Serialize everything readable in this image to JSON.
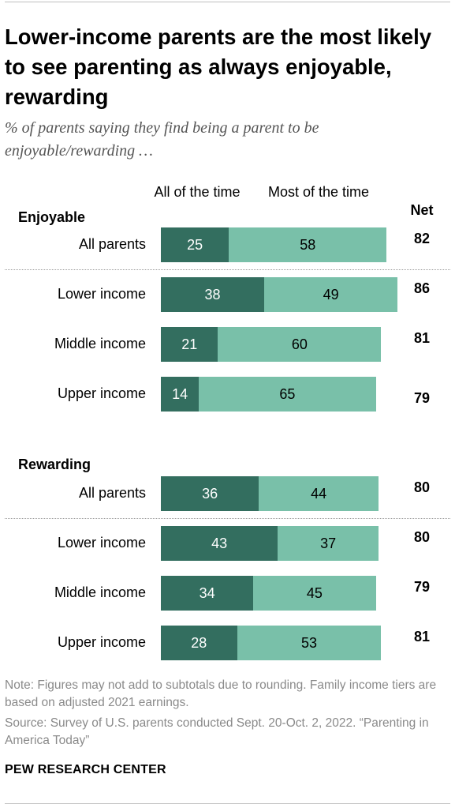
{
  "title": "Lower-income parents are the most likely to see parenting as always enjoyable, rewarding",
  "subtitle": "% of parents saying they find being a parent to be enjoyable/rewarding …",
  "columns": {
    "all": "All of the time",
    "most": "Most of the time",
    "net": "Net"
  },
  "colors": {
    "all": "#336e5f",
    "most": "#79c0a9"
  },
  "chart_data": {
    "type": "bar",
    "stacked": true,
    "orientation": "horizontal",
    "series": [
      {
        "name": "All of the time"
      },
      {
        "name": "Most of the time"
      }
    ],
    "groups": [
      {
        "name": "Enjoyable",
        "rows": [
          {
            "label": "All parents",
            "all": 25,
            "most": 58,
            "net": 82
          },
          {
            "label": "Lower income",
            "all": 38,
            "most": 49,
            "net": 86
          },
          {
            "label": "Middle income",
            "all": 21,
            "most": 60,
            "net": 81
          },
          {
            "label": "Upper income",
            "all": 14,
            "most": 65,
            "net": 79
          }
        ]
      },
      {
        "name": "Rewarding",
        "rows": [
          {
            "label": "All parents",
            "all": 36,
            "most": 44,
            "net": 80
          },
          {
            "label": "Lower income",
            "all": 43,
            "most": 37,
            "net": 80
          },
          {
            "label": "Middle income",
            "all": 34,
            "most": 45,
            "net": 79
          },
          {
            "label": "Upper income",
            "all": 28,
            "most": 53,
            "net": 81
          }
        ]
      }
    ]
  },
  "note": "Note: Figures may not add to subtotals due to rounding. Family income tiers are based on adjusted 2021 earnings.",
  "source": "Source: Survey of U.S. parents conducted Sept. 20-Oct. 2, 2022. “Parenting in America Today”",
  "brand": "PEW RESEARCH CENTER"
}
